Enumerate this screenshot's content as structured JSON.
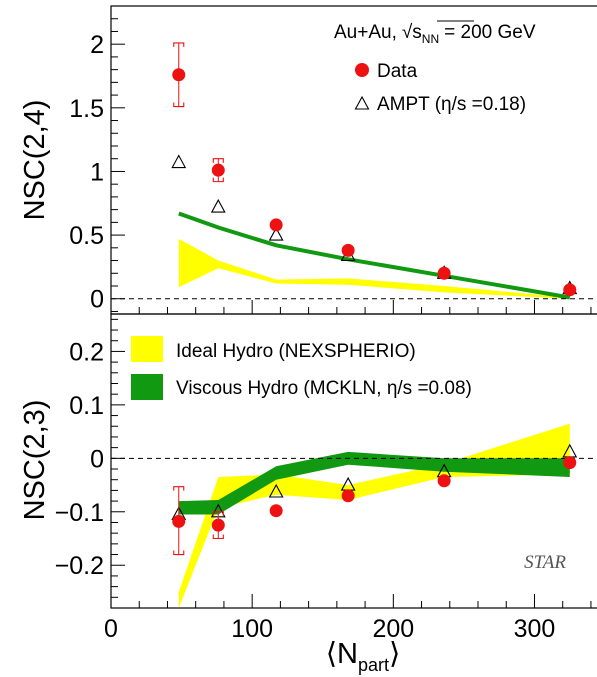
{
  "colors": {
    "data_marker": "#ee1111",
    "ideal_hydro": "#ffff00",
    "viscous_hydro": "#119911",
    "axis": "#000000",
    "zero_line": "#000000"
  },
  "chart_data": [
    {
      "type": "scatter",
      "panel": "top",
      "title": "",
      "xlabel": "",
      "ylabel": "NSC(2,4)",
      "xlim": [
        0,
        345
      ],
      "ylim": [
        -0.12,
        2.3
      ],
      "yticks": [
        0,
        0.5,
        1,
        1.5,
        2
      ],
      "ytick_labels": [
        "0",
        "0.5",
        "1",
        "1.5",
        "2"
      ],
      "zero_line": true,
      "legend_placement": "top-right",
      "legend_header": {
        "system": "Au+Au,",
        "sqrt_symbol": "√",
        "s": "s",
        "s_sub": "NN",
        "energy": "= 200 GeV"
      },
      "legend": [
        {
          "label": "Data",
          "marker": "filled-circle"
        },
        {
          "label": "AMPT (η/s =0.18)",
          "marker": "open-triangle"
        }
      ],
      "data": [
        {
          "x": 48,
          "y": 1.76,
          "sys_low": 1.51,
          "sys_high": 2.01
        },
        {
          "x": 76,
          "y": 1.01,
          "sys_low": 0.92,
          "sys_high": 1.1
        },
        {
          "x": 117,
          "y": 0.58,
          "sys_low": 0.56,
          "sys_high": 0.6
        },
        {
          "x": 168,
          "y": 0.38,
          "sys_low": 0.37,
          "sys_high": 0.39
        },
        {
          "x": 236,
          "y": 0.2,
          "sys_low": 0.19,
          "sys_high": 0.21
        },
        {
          "x": 325,
          "y": 0.07,
          "sys_low": 0.06,
          "sys_high": 0.08
        }
      ],
      "ampt": [
        {
          "x": 48,
          "y": 1.07
        },
        {
          "x": 76,
          "y": 0.72
        },
        {
          "x": 117,
          "y": 0.5
        },
        {
          "x": 168,
          "y": 0.34
        },
        {
          "x": 236,
          "y": 0.2
        },
        {
          "x": 325,
          "y": 0.08
        }
      ],
      "ideal_hydro_band": {
        "x": [
          48,
          76,
          117,
          168,
          236,
          325
        ],
        "lower": [
          0.09,
          0.24,
          0.12,
          0.11,
          0.05,
          0.0
        ],
        "upper": [
          0.47,
          0.3,
          0.15,
          0.16,
          0.1,
          0.01
        ]
      },
      "viscous_hydro_curve": {
        "x": [
          48,
          76,
          117,
          168,
          236,
          325
        ],
        "y": [
          0.67,
          0.56,
          0.42,
          0.31,
          0.18,
          0.01
        ]
      }
    },
    {
      "type": "scatter",
      "panel": "bottom",
      "title": "",
      "xlabel": "⟨N",
      "xlabel_sub": "part",
      "xlabel_close": "⟩",
      "ylabel": "NSC(2,3)",
      "xlim": [
        0,
        345
      ],
      "ylim": [
        -0.28,
        0.27
      ],
      "xticks": [
        0,
        100,
        200,
        300
      ],
      "xtick_labels": [
        "0",
        "100",
        "200",
        "300"
      ],
      "yticks": [
        -0.2,
        -0.1,
        0,
        0.1,
        0.2
      ],
      "ytick_labels": [
        "−0.2",
        "−0.1",
        "0",
        "0.1",
        "0.2"
      ],
      "zero_line": true,
      "legend_placement": "top-left",
      "legend": [
        {
          "label": "Ideal Hydro (NEXSPHERIO)",
          "marker": "yellow-box"
        },
        {
          "label": "Viscous Hydro (MCKLN, η/s =0.08)",
          "marker": "green-box"
        }
      ],
      "watermark": "STAR",
      "data": [
        {
          "x": 48,
          "y": -0.118,
          "sys_low": -0.18,
          "sys_high": -0.053
        },
        {
          "x": 76,
          "y": -0.125,
          "sys_low": -0.15,
          "sys_high": -0.1
        },
        {
          "x": 117,
          "y": -0.098,
          "sys_low": -0.102,
          "sys_high": -0.094
        },
        {
          "x": 168,
          "y": -0.07,
          "sys_low": -0.074,
          "sys_high": -0.066
        },
        {
          "x": 236,
          "y": -0.042,
          "sys_low": -0.046,
          "sys_high": -0.038
        },
        {
          "x": 325,
          "y": -0.008,
          "sys_low": -0.012,
          "sys_high": -0.004
        }
      ],
      "ampt": [
        {
          "x": 48,
          "y": -0.105
        },
        {
          "x": 76,
          "y": -0.1
        },
        {
          "x": 117,
          "y": -0.063
        },
        {
          "x": 168,
          "y": -0.05
        },
        {
          "x": 236,
          "y": -0.025
        },
        {
          "x": 325,
          "y": 0.012
        }
      ],
      "ideal_hydro_band": {
        "x": [
          48,
          76,
          117,
          168,
          236,
          325
        ],
        "lower": [
          -0.28,
          -0.093,
          -0.068,
          -0.078,
          -0.035,
          -0.03
        ],
        "upper": [
          -0.25,
          -0.035,
          -0.03,
          -0.05,
          -0.01,
          0.065
        ]
      },
      "viscous_hydro_band": {
        "x": [
          48,
          76,
          117,
          168,
          236,
          325
        ],
        "lower": [
          -0.105,
          -0.105,
          -0.04,
          -0.012,
          -0.025,
          -0.035
        ],
        "upper": [
          -0.08,
          -0.078,
          -0.015,
          0.012,
          0.0,
          0.0
        ]
      }
    }
  ]
}
